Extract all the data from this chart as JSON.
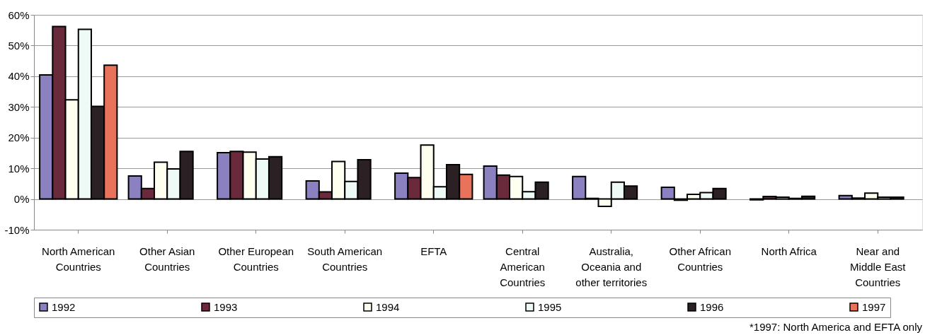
{
  "chart_data": {
    "type": "bar",
    "categories": [
      "North American\nCountries",
      "Other Asian\nCountries",
      "Other European\nCountries",
      "South American\nCountries",
      "EFTA",
      "Central\nAmerican\nCountries",
      "Australia,\nOceania and\nother territories",
      "Other African\nCountries",
      "North Africa",
      "Near and\nMiddle East\nCountries"
    ],
    "series": [
      {
        "name": "1992",
        "color": "#8b80c0",
        "values": [
          40.4,
          7.5,
          15.1,
          5.9,
          8.4,
          10.7,
          7.3,
          3.8,
          -0.3,
          1.1
        ]
      },
      {
        "name": "1993",
        "color": "#6b2a3c",
        "values": [
          56.2,
          3.4,
          15.5,
          2.3,
          7.0,
          7.8,
          0.2,
          -0.4,
          0.8,
          0.3
        ]
      },
      {
        "name": "1994",
        "color": "#fffff0",
        "values": [
          32.3,
          12.0,
          15.3,
          12.2,
          17.6,
          7.3,
          -2.4,
          1.5,
          0.6,
          1.9
        ]
      },
      {
        "name": "1995",
        "color": "#eefaf5",
        "values": [
          55.3,
          9.8,
          13.0,
          5.7,
          4.0,
          2.4,
          5.5,
          2.1,
          0.2,
          0.6
        ]
      },
      {
        "name": "1996",
        "color": "#2b2023",
        "values": [
          30.2,
          15.5,
          13.8,
          12.8,
          11.2,
          5.5,
          4.2,
          3.4,
          0.9,
          0.6
        ]
      },
      {
        "name": "1997",
        "color": "#e8735a",
        "values": [
          43.6,
          null,
          null,
          null,
          8.0,
          null,
          null,
          null,
          null,
          null
        ]
      }
    ],
    "ylim": [
      -10,
      60
    ],
    "yticks": [
      {
        "value": -10,
        "label": "-10%"
      },
      {
        "value": 0,
        "label": "0%"
      },
      {
        "value": 10,
        "label": "10%"
      },
      {
        "value": 20,
        "label": "20%"
      },
      {
        "value": 30,
        "label": "30%"
      },
      {
        "value": 40,
        "label": "40%"
      },
      {
        "value": 50,
        "label": "50%"
      },
      {
        "value": 60,
        "label": "60%"
      }
    ],
    "grid": "y",
    "legend": "bottom",
    "annotations": [
      "*1997: North America and EFTA only"
    ]
  }
}
